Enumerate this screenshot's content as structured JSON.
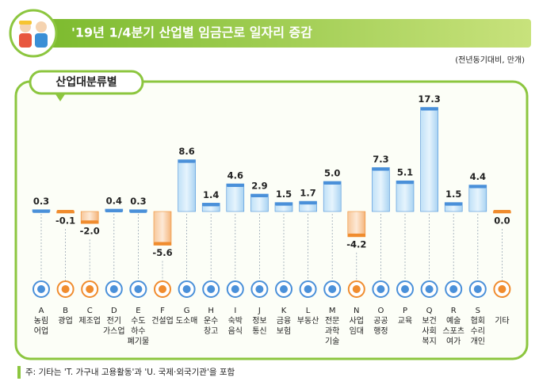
{
  "chart_data": {
    "type": "bar",
    "title": "'19년 1/4분기 산업별 임금근로 일자리 증감",
    "unit": "(전년동기대비, 만개)",
    "section": "산업대분류별",
    "note": "주: 기타는 'T. 가구내 고용활동'과 'U. 국제·외국기관'을 포함",
    "codes": [
      "A",
      "B",
      "C",
      "D",
      "E",
      "F",
      "G",
      "H",
      "I",
      "J",
      "K",
      "L",
      "M",
      "N",
      "O",
      "P",
      "Q",
      "R",
      "S",
      null
    ],
    "categories": [
      [
        "농림",
        "어업"
      ],
      [
        "광업"
      ],
      [
        "제조업"
      ],
      [
        "전기",
        "가스업"
      ],
      [
        "수도",
        "하수",
        "폐기물"
      ],
      [
        "건설업"
      ],
      [
        "도소매"
      ],
      [
        "운수",
        "창고"
      ],
      [
        "숙박",
        "음식"
      ],
      [
        "정보",
        "통신"
      ],
      [
        "금융",
        "보험"
      ],
      [
        "부동산"
      ],
      [
        "전문",
        "과학",
        "기술"
      ],
      [
        "사업",
        "임대"
      ],
      [
        "공공",
        "행정"
      ],
      [
        "교육"
      ],
      [
        "보건",
        "사회",
        "복지"
      ],
      [
        "예술",
        "스포츠",
        "여가"
      ],
      [
        "협회",
        "수리",
        "개인"
      ],
      [
        "기타"
      ]
    ],
    "values": [
      0.3,
      -0.1,
      -2.0,
      0.4,
      0.3,
      -5.6,
      8.6,
      1.4,
      4.6,
      2.9,
      1.5,
      1.7,
      5.0,
      -4.2,
      7.3,
      5.1,
      17.3,
      1.5,
      4.4,
      0.0
    ],
    "value_labels": [
      "0.3",
      "-0.1",
      "-2.0",
      "0.4",
      "0.3",
      "-5.6",
      "8.6",
      "1.4",
      "4.6",
      "2.9",
      "1.5",
      "1.7",
      "5.0",
      "-4.2",
      "7.3",
      "5.1",
      "17.3",
      "1.5",
      "4.4",
      "0.0"
    ],
    "positive_color": "#4a90d9",
    "negative_color": "#f08c2e"
  }
}
